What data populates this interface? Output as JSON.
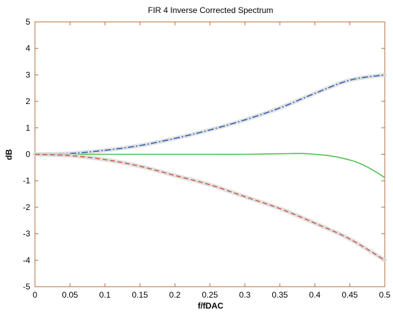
{
  "chart_data": {
    "type": "line",
    "title": "FIR 4 Inverse Corrected Spectrum",
    "xlabel": "f/fDAC",
    "ylabel": "dB",
    "xlim": [
      0,
      0.5
    ],
    "ylim": [
      -5,
      5
    ],
    "xticks": [
      0,
      0.05,
      0.1,
      0.15,
      0.2,
      0.25,
      0.3,
      0.35,
      0.4,
      0.45,
      0.5
    ],
    "xtick_labels": [
      "0",
      "0.05",
      "0.1",
      "0.15",
      "0.2",
      "0.25",
      "0.3",
      "0.35",
      "0.4",
      "0.45",
      "0.5"
    ],
    "yticks": [
      5,
      4,
      3,
      2,
      1,
      0,
      -1,
      -2,
      -3,
      -4,
      -5
    ],
    "ytick_labels": [
      "5",
      "4",
      "3",
      "2",
      "1",
      "0",
      "-1",
      "-2",
      "-3",
      "-4",
      "-5"
    ],
    "grid": false,
    "frame_color": "#b06a3a",
    "series": [
      {
        "style": "dash-dot",
        "color": "#2b5fb8",
        "x": [
          0,
          0.05,
          0.1,
          0.15,
          0.2,
          0.25,
          0.3,
          0.35,
          0.4,
          0.45,
          0.5
        ],
        "y": [
          0.0,
          0.03,
          0.15,
          0.33,
          0.6,
          0.92,
          1.3,
          1.75,
          2.3,
          2.8,
          3.0
        ]
      },
      {
        "style": "solid",
        "color": "#4fbf4f",
        "x": [
          0,
          0.05,
          0.1,
          0.15,
          0.2,
          0.25,
          0.3,
          0.35,
          0.38,
          0.4,
          0.42,
          0.44,
          0.46,
          0.48,
          0.5
        ],
        "y": [
          0.0,
          0.0,
          0.0,
          0.0,
          0.0,
          0.0,
          0.0,
          0.02,
          0.03,
          0.0,
          -0.05,
          -0.15,
          -0.3,
          -0.55,
          -0.88
        ]
      },
      {
        "style": "dashed",
        "color": "#c8604a",
        "x": [
          0,
          0.05,
          0.1,
          0.15,
          0.2,
          0.25,
          0.3,
          0.35,
          0.4,
          0.45,
          0.5
        ],
        "y": [
          0.0,
          -0.05,
          -0.2,
          -0.45,
          -0.8,
          -1.15,
          -1.6,
          -2.05,
          -2.6,
          -3.2,
          -4.0
        ]
      }
    ]
  }
}
